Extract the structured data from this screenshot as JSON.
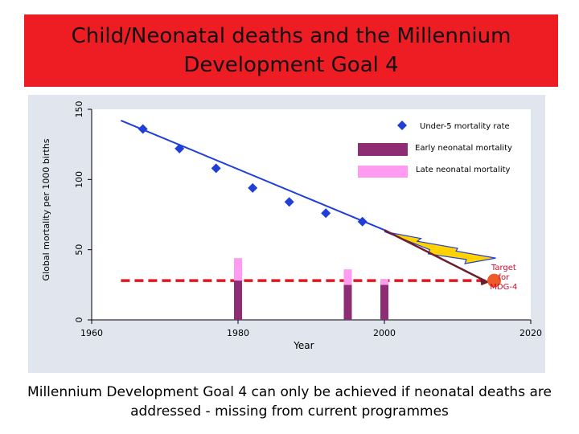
{
  "title": {
    "line1": "Child/Neonatal deaths and the Millennium",
    "line2": "Development Goal 4"
  },
  "footer": {
    "line1": "Millennium Development Goal 4 can only be achieved if neonatal deaths are",
    "line2": "addressed - missing from current programmes"
  },
  "colors": {
    "banner": "#ee1c23",
    "panel": "#e1e6ee",
    "plot_bg": "#ffffff",
    "under5": "#1f3fd8",
    "early_neonatal": "#8e2c74",
    "late_neonatal": "#ff9cf2",
    "target_line": "#e8141c",
    "target_marker": "#f05a28",
    "target_text": "#c8102e",
    "arrow_fill": "#ffd200",
    "arrow_outline": "#1f3fd8",
    "trend_arrow": "#6b1e2e"
  },
  "chart_data": {
    "type": "line",
    "title": "Child/Neonatal deaths and the Millennium Development Goal 4",
    "xlabel": "Year",
    "ylabel": "Global mortality per 1000 births",
    "xlim": [
      1960,
      2020
    ],
    "ylim": [
      0,
      150
    ],
    "xticks": [
      1960,
      1980,
      2000,
      2020
    ],
    "yticks": [
      0,
      50,
      100,
      150
    ],
    "series": [
      {
        "name": "Under-5 mortality rate",
        "kind": "line-marker",
        "x": [
          1967,
          1972,
          1977,
          1982,
          1987,
          1992,
          1997
        ],
        "y": [
          136,
          122,
          108,
          94,
          84,
          76,
          70
        ],
        "trend_x": [
          1964,
          2000
        ],
        "trend_y": [
          142,
          64
        ]
      },
      {
        "name": "Early neonatal mortality",
        "kind": "bar",
        "x": [
          1980,
          1995,
          2000
        ],
        "values": [
          28,
          25,
          25
        ]
      },
      {
        "name": "Late neonatal mortality",
        "kind": "bar-stacked",
        "x": [
          1980,
          1995,
          2000
        ],
        "values": [
          16,
          11,
          4
        ]
      }
    ],
    "projection": {
      "x": [
        2000,
        2015
      ],
      "y": [
        64,
        45
      ]
    },
    "target": {
      "label_lines": [
        "Target",
        "for",
        "MDG-4"
      ],
      "year": 2015,
      "value": 28,
      "line_from_year": 1964
    },
    "legend": {
      "position": "top-right",
      "entries": [
        "Under-5 mortality rate",
        "Early neonatal mortality",
        "Late neonatal mortality"
      ]
    },
    "grid": false
  }
}
